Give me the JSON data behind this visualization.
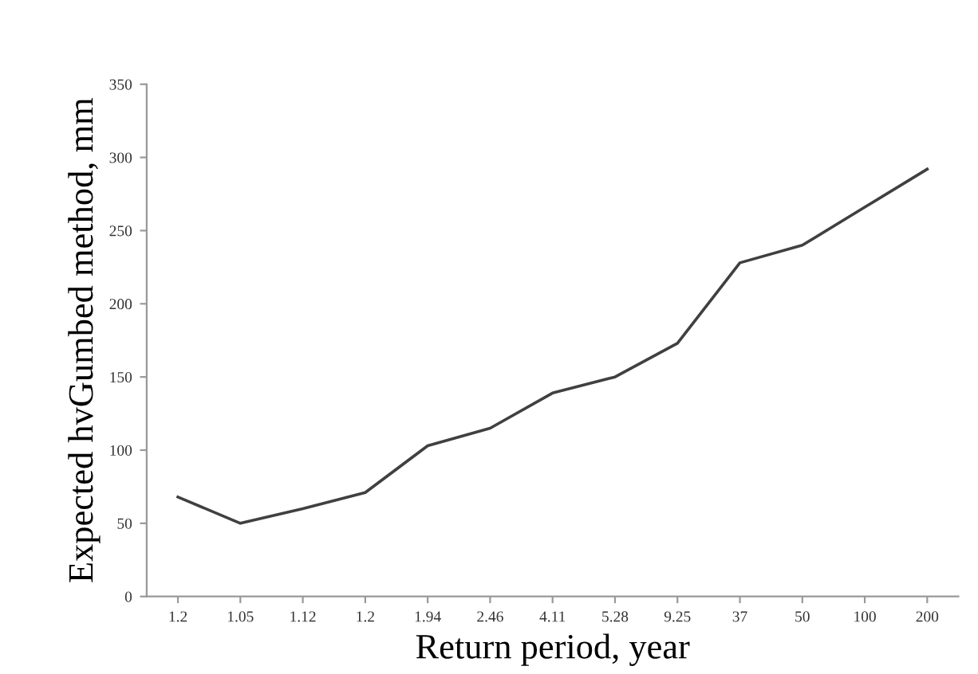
{
  "chart_data": {
    "type": "line",
    "xlabel": "Return period, year",
    "ylabel": "Expected hvGumbed method, mm",
    "categories": [
      "1.2",
      "1.05",
      "1.12",
      "1.2",
      "1.94",
      "2.46",
      "4.11",
      "5.28",
      "9.25",
      "37",
      "50",
      "100",
      "200"
    ],
    "series": [
      {
        "color": "#404040",
        "values": [
          68,
          50,
          60,
          71,
          103,
          115,
          139,
          150,
          173,
          228,
          240,
          266,
          292
        ]
      }
    ],
    "ylim": [
      0,
      350
    ],
    "yticks": [
      0,
      50,
      100,
      150,
      200,
      250,
      300,
      350
    ],
    "grid": false,
    "legend": false,
    "marker": "none",
    "line_style": "solid"
  }
}
